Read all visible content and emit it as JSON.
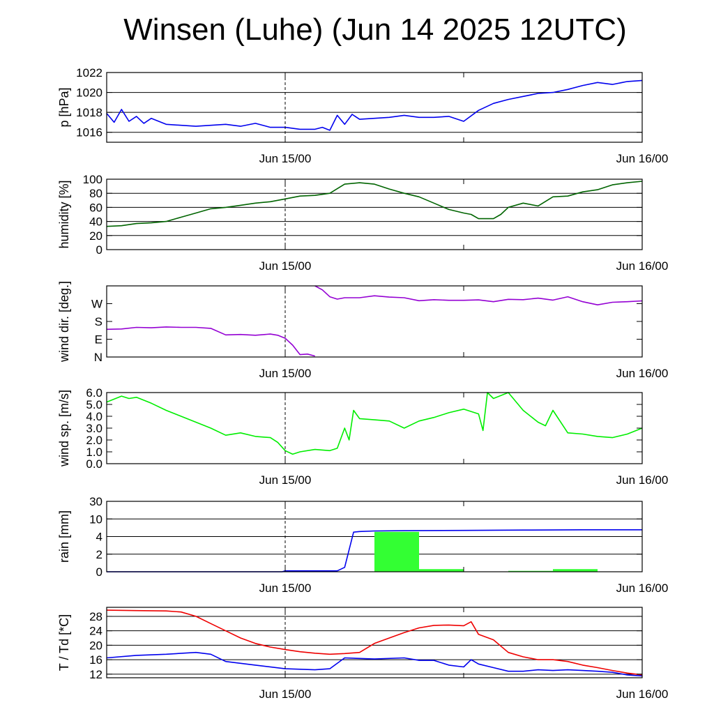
{
  "title": "Winsen (Luhe) (Jun 14 2025 12UTC)",
  "colors": {
    "pressure": "#0000ee",
    "humidity": "#006400",
    "wind_dir": "#9400d3",
    "wind_speed": "#00ee00",
    "rain_bar": "#33ff33",
    "rain_line": "#0000ee",
    "temperature": "#ee0000",
    "dewpoint": "#0000ee"
  },
  "x_axis": {
    "start": "Jun 14 12UTC",
    "end": "Jun 16/00",
    "ticks": [
      "Jun 15/00",
      "Jun 16/00"
    ],
    "marker": "Jun 15/00"
  },
  "chart_data": [
    {
      "type": "line",
      "ylabel": "p [hPa]",
      "ylim": [
        1015,
        1022
      ],
      "yticks": [
        1016,
        1018,
        1020,
        1022
      ],
      "yticklabels": [
        "1016",
        "1018",
        "1020",
        "1022"
      ],
      "grid": true,
      "series": [
        {
          "color": "pressure",
          "x": [
            0,
            0.5,
            1,
            1.5,
            2,
            2.5,
            3,
            4,
            5,
            6,
            7,
            8,
            9,
            10,
            11,
            12,
            13,
            14,
            14.5,
            15,
            15.5,
            16,
            16.5,
            17,
            18,
            19,
            20,
            21,
            22,
            23,
            24,
            25,
            26,
            27,
            28,
            29,
            30,
            31,
            32,
            33,
            34,
            35,
            36
          ],
          "y": [
            1017.9,
            1017.0,
            1018.3,
            1017.1,
            1017.6,
            1016.9,
            1017.4,
            1016.8,
            1016.7,
            1016.6,
            1016.7,
            1016.8,
            1016.6,
            1016.9,
            1016.5,
            1016.5,
            1016.3,
            1016.3,
            1016.5,
            1016.2,
            1017.7,
            1016.8,
            1017.8,
            1017.3,
            1017.4,
            1017.5,
            1017.7,
            1017.5,
            1017.5,
            1017.6,
            1017.1,
            1018.2,
            1018.9,
            1019.3,
            1019.6,
            1019.9,
            1020.0,
            1020.3,
            1020.7,
            1021.0,
            1020.8,
            1021.1,
            1021.2
          ]
        }
      ]
    },
    {
      "type": "line",
      "ylabel": "humidity [%]",
      "ylim": [
        0,
        100
      ],
      "yticks": [
        0,
        20,
        40,
        60,
        80,
        100
      ],
      "yticklabels": [
        "0",
        "20",
        "40",
        "60",
        "80",
        "100"
      ],
      "grid": true,
      "series": [
        {
          "color": "humidity",
          "x": [
            0,
            1,
            2,
            3,
            4,
            5,
            6,
            7,
            8,
            9,
            10,
            11,
            12,
            13,
            14,
            15,
            16,
            17,
            18,
            19,
            20,
            21,
            22,
            23,
            24,
            24.5,
            25,
            26,
            26.5,
            27,
            28,
            29,
            30,
            31,
            32,
            33,
            34,
            35,
            36
          ],
          "y": [
            33,
            34,
            37,
            38,
            40,
            46,
            52,
            58,
            60,
            63,
            66,
            68,
            72,
            76,
            77,
            80,
            93,
            95,
            93,
            86,
            80,
            75,
            66,
            57,
            52,
            50,
            44,
            44,
            50,
            60,
            66,
            62,
            75,
            76,
            82,
            85,
            92,
            95,
            97
          ]
        }
      ]
    },
    {
      "type": "line",
      "ylabel": "wind dir. [deg.]",
      "ylim": [
        0,
        360
      ],
      "yticks": [
        0,
        90,
        180,
        270
      ],
      "yticklabels": [
        "N",
        "E",
        "S",
        "W"
      ],
      "grid": false,
      "series": [
        {
          "color": "wind_dir",
          "x": [
            0,
            1,
            2,
            3,
            4,
            5,
            6,
            7,
            8,
            9,
            10,
            11,
            11.5,
            12,
            12.5,
            13,
            13.5,
            14
          ],
          "y": [
            140,
            142,
            150,
            148,
            152,
            150,
            150,
            145,
            112,
            114,
            110,
            116,
            110,
            95,
            60,
            12,
            15,
            5
          ]
        },
        {
          "color": "wind_dir",
          "x": [
            14,
            14.5,
            15,
            15.5,
            16,
            17,
            18,
            19,
            20,
            21,
            22,
            23,
            24,
            25,
            26,
            27,
            28,
            29,
            30,
            31,
            32,
            33,
            34,
            35,
            36
          ],
          "y": [
            360,
            340,
            305,
            293,
            300,
            300,
            310,
            303,
            300,
            285,
            290,
            287,
            287,
            289,
            280,
            292,
            290,
            298,
            288,
            305,
            280,
            264,
            277,
            280,
            284
          ]
        }
      ]
    },
    {
      "type": "line",
      "ylabel": "wind sp. [m/s]",
      "ylim": [
        0,
        6
      ],
      "yticks": [
        0,
        1,
        2,
        3,
        4,
        5,
        6
      ],
      "yticklabels": [
        "0.0",
        "1.0",
        "2.0",
        "3.0",
        "4.0",
        "5.0",
        "6.0"
      ],
      "grid": false,
      "series": [
        {
          "color": "wind_speed",
          "x": [
            0,
            1,
            1.5,
            2,
            3,
            4,
            5,
            6,
            7,
            8,
            9,
            10,
            11,
            11.5,
            12,
            12.5,
            13,
            14,
            15,
            15.5,
            16,
            16.3,
            16.6,
            17,
            18,
            19,
            20,
            21,
            22,
            23,
            24,
            25,
            25.3,
            25.6,
            26,
            27,
            28,
            29,
            29.5,
            30,
            31,
            32,
            33,
            34,
            35,
            36
          ],
          "y": [
            5.2,
            5.7,
            5.5,
            5.6,
            5.1,
            4.5,
            4.0,
            3.5,
            3.0,
            2.4,
            2.6,
            2.3,
            2.2,
            1.8,
            1.1,
            0.8,
            1.0,
            1.2,
            1.1,
            1.3,
            3.0,
            2.0,
            4.5,
            3.8,
            3.7,
            3.6,
            3.0,
            3.6,
            3.9,
            4.3,
            4.6,
            4.2,
            2.8,
            6.0,
            5.5,
            6.0,
            4.5,
            3.5,
            3.2,
            4.5,
            2.6,
            2.5,
            2.3,
            2.2,
            2.5,
            3.0
          ]
        }
      ]
    },
    {
      "type": "bar",
      "ylabel": "rain [mm]",
      "ylim": [
        0,
        30
      ],
      "yticks": [
        0,
        2,
        4,
        10,
        30
      ],
      "yticklabels": [
        "0",
        "2",
        "4",
        "10",
        "30"
      ],
      "grid": true,
      "bars": {
        "color": "rain_bar",
        "x_start": [
          0,
          3,
          6,
          9,
          12,
          15,
          18,
          21,
          24,
          27,
          30,
          33
        ],
        "x_end": [
          3,
          6,
          9,
          12,
          15,
          18,
          21,
          24,
          27,
          30,
          33,
          36
        ],
        "values": [
          0,
          0,
          0,
          0,
          0,
          0,
          5.6,
          0.3,
          0,
          0.1,
          0.3,
          0
        ]
      },
      "series": [
        {
          "color": "rain_line",
          "x": [
            0,
            11.8,
            12,
            15.5,
            16,
            16.3,
            16.6,
            17,
            18,
            20,
            24,
            28,
            32,
            36
          ],
          "y": [
            0,
            0,
            0.1,
            0.1,
            0.5,
            2.5,
            5.5,
            5.7,
            5.9,
            6.0,
            6.1,
            6.2,
            6.3,
            6.3
          ]
        }
      ]
    },
    {
      "type": "line",
      "ylabel": "T / Td [*C]",
      "ylim": [
        11,
        30.5
      ],
      "yticks": [
        12,
        16,
        20,
        24,
        28
      ],
      "yticklabels": [
        "12",
        "16",
        "20",
        "24",
        "28"
      ],
      "grid": true,
      "series": [
        {
          "color": "temperature",
          "x": [
            0,
            2,
            4,
            5,
            6,
            7,
            8,
            9,
            10,
            11,
            12,
            13,
            14,
            15,
            16,
            17,
            18,
            19,
            20,
            21,
            22,
            23,
            24,
            24.5,
            25,
            26,
            27,
            28,
            29,
            30,
            31,
            32,
            33,
            34,
            35,
            36
          ],
          "y": [
            29.7,
            29.6,
            29.5,
            29.2,
            28.0,
            26.0,
            24.0,
            22.0,
            20.5,
            19.5,
            18.8,
            18.2,
            17.8,
            17.5,
            17.7,
            18.0,
            20.5,
            22.0,
            23.5,
            24.8,
            25.5,
            25.6,
            25.4,
            26.5,
            23.0,
            21.5,
            18.0,
            16.8,
            16.0,
            16.0,
            15.5,
            14.5,
            13.8,
            13.0,
            12.3,
            11.8
          ]
        },
        {
          "color": "dewpoint",
          "x": [
            0,
            2,
            4,
            6,
            7,
            8,
            10,
            12,
            14,
            15,
            16,
            18,
            20,
            21,
            22,
            23,
            24,
            24.5,
            25,
            26,
            27,
            28,
            29,
            30,
            31,
            32,
            33,
            34,
            35,
            36
          ],
          "y": [
            16.5,
            17.2,
            17.5,
            18.0,
            17.5,
            15.5,
            14.5,
            13.5,
            13.2,
            13.5,
            16.5,
            16.2,
            16.5,
            15.8,
            15.8,
            14.5,
            14.0,
            16.0,
            14.8,
            13.8,
            12.8,
            12.8,
            13.2,
            13.0,
            13.2,
            13.0,
            12.8,
            12.5,
            11.8,
            11.5
          ]
        }
      ]
    }
  ]
}
